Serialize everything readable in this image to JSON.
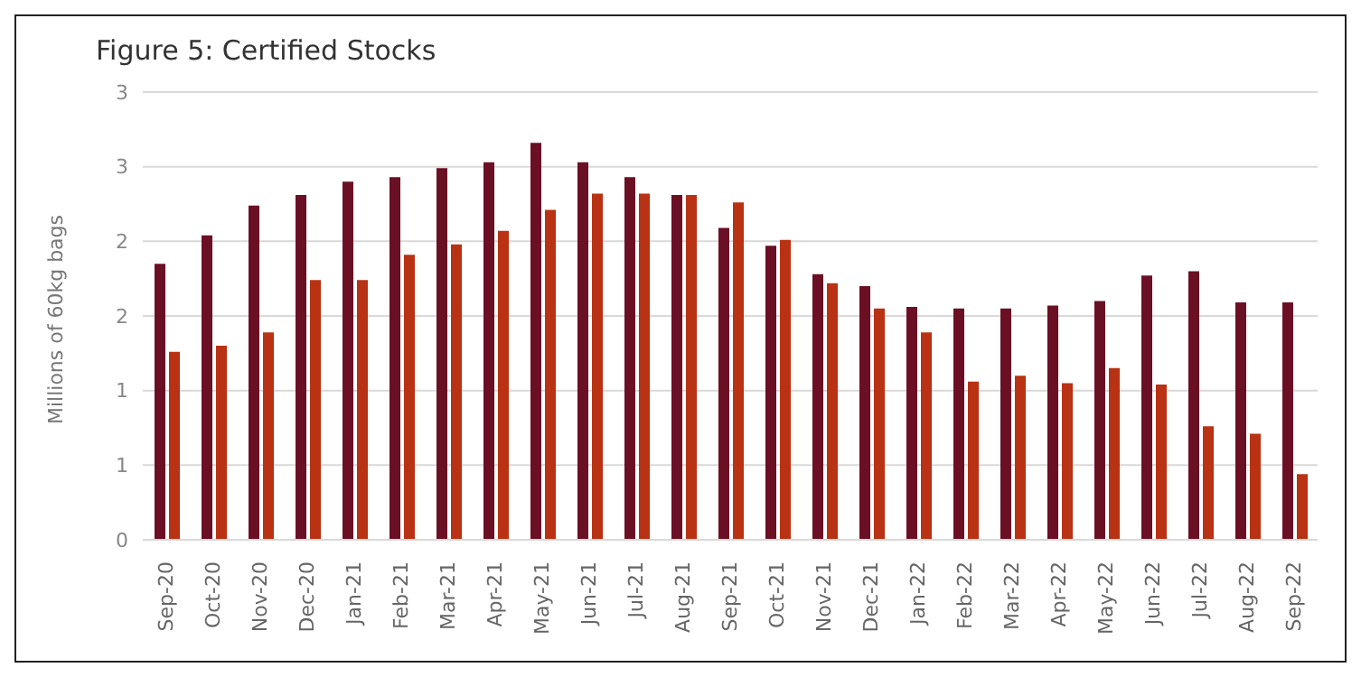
{
  "chart_data": {
    "type": "bar",
    "title": "Figure 5: Certified Stocks",
    "ylabel": "Millions of 60kg bags",
    "categories": [
      "Sep-20",
      "Oct-20",
      "Nov-20",
      "Dec-20",
      "Jan-21",
      "Feb-21",
      "Mar-21",
      "Apr-21",
      "May-21",
      "Jun-21",
      "Jul-21",
      "Aug-21",
      "Sep-21",
      "Oct-21",
      "Nov-21",
      "Dec-21",
      "Jan-22",
      "Feb-22",
      "Mar-22",
      "Apr-22",
      "May-22",
      "Jun-22",
      "Jul-22",
      "Aug-22",
      "Sep-22"
    ],
    "series": [
      {
        "color": "#6b0f24",
        "values": [
          1.85,
          2.04,
          2.24,
          2.31,
          2.4,
          2.43,
          2.49,
          2.53,
          2.66,
          2.53,
          2.43,
          2.31,
          2.09,
          1.97,
          1.78,
          1.7,
          1.56,
          1.55,
          1.55,
          1.57,
          1.6,
          1.77,
          1.8,
          1.59,
          1.59
        ]
      },
      {
        "color": "#b83213",
        "values": [
          1.26,
          1.3,
          1.39,
          1.74,
          1.74,
          1.91,
          1.98,
          2.07,
          2.21,
          2.32,
          2.32,
          2.31,
          2.26,
          2.01,
          1.72,
          1.55,
          1.39,
          1.06,
          1.1,
          1.05,
          1.15,
          1.04,
          0.76,
          0.71,
          0.44
        ]
      }
    ],
    "ylim": [
      0,
      3
    ],
    "yticks": [
      0,
      {
        "value": 0.5,
        "label": "1"
      },
      {
        "value": 1,
        "label": "1"
      },
      {
        "value": 1.5,
        "label": "2"
      },
      {
        "value": 2,
        "label": "2"
      },
      {
        "value": 2.5,
        "label": "3"
      },
      {
        "value": 3,
        "label": "3"
      }
    ],
    "grid": "y",
    "legend": false
  }
}
